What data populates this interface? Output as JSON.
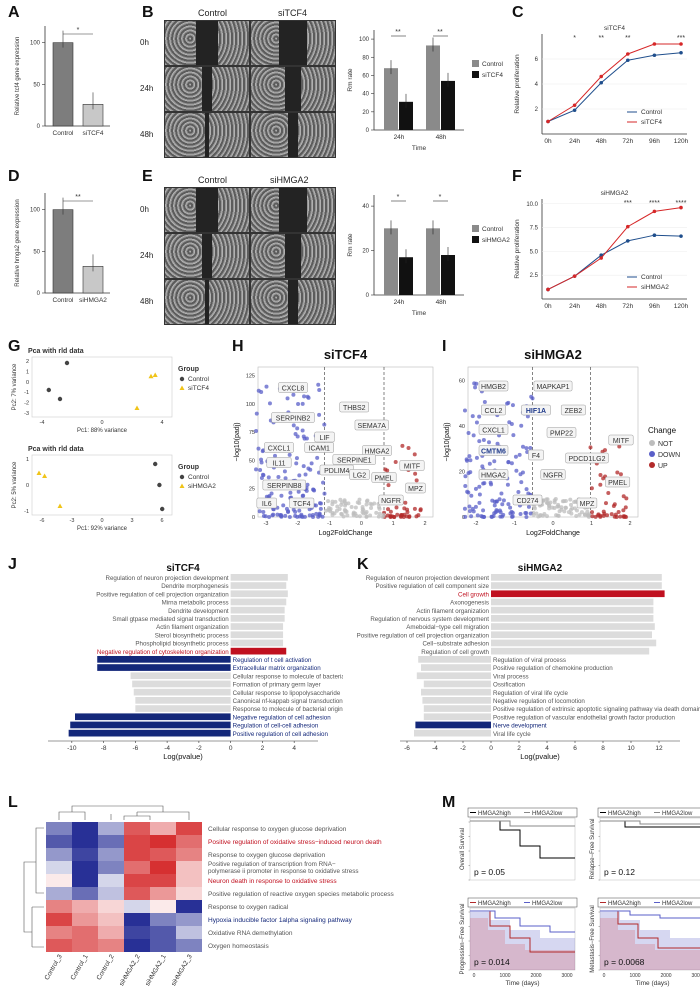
{
  "labels": [
    "A",
    "B",
    "C",
    "D",
    "E",
    "F",
    "G",
    "H",
    "I",
    "J",
    "K",
    "L",
    "M"
  ],
  "A": {
    "ylabel": "Relative tcf4 gene expression",
    "sig": "*",
    "categories": [
      "Control",
      "siTCF4"
    ],
    "values": [
      100,
      26
    ],
    "ticks": [
      "0",
      "50",
      "100"
    ]
  },
  "B": {
    "cols": [
      "Control",
      "siTCF4"
    ],
    "rows": [
      "0h",
      "24h",
      "48h"
    ],
    "chart": {
      "ylabel": "Rm rate",
      "xlabel": "Time",
      "categories": [
        "24h",
        "48h"
      ],
      "sig": [
        "**",
        "**"
      ],
      "series": [
        {
          "name": "Control",
          "values": [
            68,
            93
          ],
          "color": "#8a8a8a"
        },
        {
          "name": "siTCF4",
          "values": [
            31,
            54
          ],
          "color": "#111111"
        }
      ],
      "ticks": [
        "0",
        "20",
        "40",
        "60",
        "80",
        "100"
      ]
    }
  },
  "C": {
    "title": "siTCF4",
    "ylabel": "Relative proliferation",
    "x": [
      "0h",
      "24h",
      "48h",
      "72h",
      "96h",
      "120h"
    ],
    "series": [
      {
        "name": "Control",
        "values": [
          1,
          1.9,
          4.1,
          5.9,
          6.3,
          6.5
        ],
        "color": "#1f4e8c"
      },
      {
        "name": "siTCF4",
        "values": [
          1,
          2.3,
          4.6,
          6.4,
          7.2,
          7.2
        ],
        "color": "#d62728"
      }
    ],
    "sig": [
      "",
      "*",
      "**",
      "**",
      "",
      "***"
    ],
    "ticks": [
      "2",
      "4",
      "6"
    ]
  },
  "D": {
    "ylabel": "Relative hmga2 gene expression",
    "sig": "**",
    "categories": [
      "Control",
      "siHMGA2"
    ],
    "values": [
      100,
      32
    ],
    "ticks": [
      "0",
      "50",
      "100"
    ]
  },
  "E": {
    "cols": [
      "Control",
      "siHMGA2"
    ],
    "rows": [
      "0h",
      "24h",
      "48h"
    ],
    "chart": {
      "ylabel": "Rm rate",
      "xlabel": "Time",
      "categories": [
        "24h",
        "48h"
      ],
      "sig": [
        "*",
        "*"
      ],
      "series": [
        {
          "name": "Control",
          "values": [
            30,
            30
          ],
          "color": "#8a8a8a"
        },
        {
          "name": "siHMGA2",
          "values": [
            17,
            18
          ],
          "color": "#111111"
        }
      ],
      "ticks": [
        "0",
        "20",
        "40"
      ]
    }
  },
  "F": {
    "title": "siHMGA2",
    "ylabel": "Relative proliferation",
    "x": [
      "0h",
      "24h",
      "48h",
      "72h",
      "96h",
      "120h"
    ],
    "series": [
      {
        "name": "Control",
        "values": [
          1,
          2.4,
          4.6,
          6.1,
          6.7,
          6.6
        ],
        "color": "#1f4e8c"
      },
      {
        "name": "siHMGA2",
        "values": [
          1,
          2.4,
          4.3,
          7.6,
          9.2,
          9.6
        ],
        "color": "#d62728"
      }
    ],
    "sig": [
      "",
      "",
      "",
      "***",
      "****",
      "****"
    ],
    "ticks": [
      "2.5",
      "5.0",
      "7.5",
      "10.0"
    ]
  },
  "G": {
    "top": {
      "title": "Pca with rld data",
      "xlabel": "Pc1: 88% variance",
      "ylabel": "Pc2: 7% variance",
      "legend_title": "Group",
      "groups": [
        "Control",
        "siTCF4"
      ],
      "xticks": [
        "-4",
        "0",
        "4"
      ],
      "yticks": [
        "2",
        "1",
        "0",
        "-1",
        "-2",
        "-3"
      ]
    },
    "bottom": {
      "title": "Pca with rld data",
      "xlabel": "Pc1: 92% variance",
      "ylabel": "Pc2: 5% variance",
      "legend_title": "Group",
      "groups": [
        "Control",
        "siHMGA2"
      ],
      "xticks": [
        "-6",
        "-3",
        "0",
        "3",
        "6"
      ],
      "yticks": [
        "1",
        "0",
        "-1"
      ]
    }
  },
  "H": {
    "title": "siTCF4",
    "xlabel": "Log2FoldChange",
    "ylabel": "−log10(padj)",
    "xticks": [
      "-3",
      "-2",
      "-1",
      "0",
      "1",
      "2"
    ],
    "yticks": [
      "0",
      "25",
      "50",
      "75",
      "100",
      "125"
    ],
    "genes": [
      "CXCL8",
      "THBS2",
      "SERPINB2",
      "SEMA7A",
      "LIF",
      "CXCL1",
      "ICAM1",
      "HMGA2",
      "IL11",
      "SERPINE1",
      "MITF",
      "PDLIM4",
      "LG2",
      "PMEL",
      "MPZ",
      "SERPINB8",
      "NGFR",
      "IL6",
      "TCF4"
    ]
  },
  "I": {
    "title": "siHMGA2",
    "xlabel": "Log2FoldChange",
    "ylabel": "−log10(padj)",
    "xticks": [
      "-2",
      "-1",
      "0",
      "1",
      "2"
    ],
    "yticks": [
      "0",
      "20",
      "40",
      "60"
    ],
    "genes": [
      "HMGB2",
      "MAPKAP1",
      "CCL2",
      "HIF1A",
      "ZEB2",
      "CXCL1",
      "PMP22",
      "MITF",
      "CMTM6",
      "PDCD1LG2",
      "F4",
      "HMGA2",
      "NGFR",
      "PMEL",
      "CD274",
      "MPZ"
    ],
    "legend_title": "Change",
    "legend": [
      "NOT",
      "DOWN",
      "UP"
    ]
  },
  "J": {
    "title": "siTCF4",
    "xlabel": "Log(pvalue)",
    "xticks": [
      "-10",
      "-8",
      "-6",
      "-4",
      "-2",
      "0",
      "2",
      "4"
    ],
    "up": [
      "Regulation of neuron projection development",
      "Dendrite morphogenesis",
      "Positive regulation of cell projection organization",
      "Mirna metabolic process",
      "Dendrite development",
      "Small gtpase mediated signal transduction",
      "Actin filament organization",
      "Sterol biosynthetic process",
      "Phospholipid biosynthetic process",
      "Negative regulation of cytoskeleton organization"
    ],
    "down": [
      "Regulation of t cell activation",
      "Extracellular matrix organization",
      "Cellular response to molecule of bacterial origin",
      "Formation of primary germ layer",
      "Cellular response to lipopolysaccharide",
      "Canonical nf-kappab signal transduction",
      "Response to molecule of bacterial origin",
      "Negative regulation of cell adhesion",
      "Regulation of cell-cell adhesion",
      "Positive regulation of cell adhesion"
    ]
  },
  "K": {
    "title": "siHMGA2",
    "xlabel": "Log(pvalue)",
    "xticks": [
      "-6",
      "-4",
      "-2",
      "0",
      "2",
      "4",
      "6",
      "8",
      "10",
      "12"
    ],
    "up": [
      "Regulation of neuron projection development",
      "Positive regulation of cell component size",
      "Cell growth",
      "Axonogenesis",
      "Actin filament organization",
      "Regulation of nervous system development",
      "Ameboidal−type cell migration",
      "Positive regulation of cell projection organization",
      "Cell−substrate adhesion",
      "Regulation of cell growth"
    ],
    "down": [
      "Regulation of viral process",
      "Positive regulation of chemokine production",
      "Viral process",
      "Ossification",
      "Regulation of viral life cycle",
      "Negative regulation of locomotion",
      "Positive regulation of extrinsic apoptotic signaling pathway via death domain receptors",
      "Positive regulation of vascular endothelial growth factor production",
      "Nerve development",
      "Viral life cycle"
    ]
  },
  "L": {
    "samples": [
      "Control_3",
      "Control_1",
      "Control_2",
      "siHMGA2_2",
      "siHMGA2_1",
      "siHMGA2_3"
    ],
    "rows": [
      "Cellular response to oxygen glucose deprivation",
      "Positive regulation of oxidative stress−induced neuron death",
      "Response to oxygen glucose deprivation",
      "Positive regulation of transcription from RNA−polymerase ii promoter in response to oxidative stress",
      "Neuron death in response to oxidative stress",
      "Positive regulation of reactive oxygen species metabolic process",
      "Response to oxygen radical",
      "Hypoxia inducible factor 1alpha signaling pathway",
      "Oxidative RNA demethylation",
      "Oxygen homeostasis"
    ],
    "matrix": [
      [
        -0.6,
        -1,
        -0.4,
        0.8,
        0.4,
        0.9
      ],
      [
        -0.8,
        -1,
        -0.7,
        0.9,
        1,
        0.7
      ],
      [
        -0.5,
        -0.9,
        -0.5,
        0.9,
        0.8,
        0.6
      ],
      [
        -0.2,
        -1,
        -0.6,
        0.7,
        1,
        0.3
      ],
      [
        0.1,
        -1,
        -0.2,
        0.9,
        0.9,
        0.3
      ],
      [
        -0.4,
        -0.7,
        -0.3,
        0.8,
        0.5,
        0.2
      ],
      [
        0.6,
        0.4,
        0.2,
        -0.2,
        0.1,
        -1
      ],
      [
        0.9,
        0.5,
        0.3,
        -1,
        -0.6,
        -0.5
      ],
      [
        0.6,
        0.7,
        0.4,
        -0.9,
        -0.8,
        -0.3
      ],
      [
        0.8,
        0.7,
        0.6,
        -1,
        -0.8,
        -0.6
      ]
    ]
  },
  "M": {
    "xlabel": "Time (days)",
    "xticks": [
      "0",
      "1000",
      "2000",
      "3000"
    ],
    "yticks": [
      "0",
      "0.25",
      "0.5",
      "0.75",
      "1"
    ],
    "legend": [
      "HMGA2high",
      "HMGA2low"
    ],
    "plots": [
      {
        "ylabel": "Overall Survival",
        "p": "p = 0.05"
      },
      {
        "ylabel": "Relapse−Free Survival",
        "p": "p = 0.12"
      },
      {
        "ylabel": "Progression−Free Survival",
        "p": "p = 0.014"
      },
      {
        "ylabel": "Metastasis−Free Survival",
        "p": "p = 0.0068"
      }
    ]
  }
}
